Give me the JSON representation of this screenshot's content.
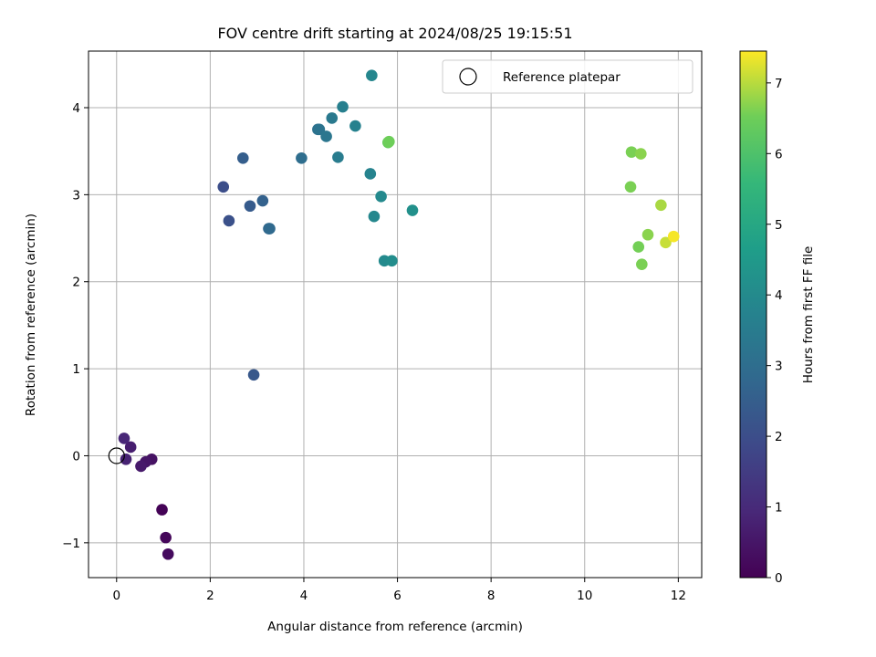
{
  "chart_data": {
    "type": "scatter",
    "title": "FOV centre drift starting at 2024/08/25 19:15:51",
    "xlabel": "Angular distance from reference (arcmin)",
    "ylabel": "Rotation from reference (arcmin)",
    "xlim": [
      -0.6,
      12.5
    ],
    "ylim": [
      -1.4,
      4.65
    ],
    "xticks": [
      0,
      2,
      4,
      6,
      8,
      10,
      12
    ],
    "yticks": [
      -1,
      0,
      1,
      2,
      3,
      4
    ],
    "ytick_labels": [
      "−1",
      "0",
      "1",
      "2",
      "3",
      "4"
    ],
    "grid": true,
    "legend": {
      "position": "top-right",
      "entries": [
        "Reference platepar"
      ]
    },
    "colorbar": {
      "label": "Hours from first FF file",
      "range": [
        0,
        7.45
      ],
      "ticks": [
        0,
        1,
        2,
        3,
        4,
        5,
        6,
        7
      ],
      "colormap": "viridis"
    },
    "reference_point": {
      "x": 0,
      "y": 0,
      "label": "Reference platepar"
    },
    "points": [
      {
        "x": 0.97,
        "y": -0.62,
        "c": 0.05
      },
      {
        "x": 1.05,
        "y": -0.94,
        "c": 0.15
      },
      {
        "x": 1.1,
        "y": -1.13,
        "c": 0.25
      },
      {
        "x": 0.75,
        "y": -0.04,
        "c": 0.4
      },
      {
        "x": 0.62,
        "y": -0.07,
        "c": 0.5
      },
      {
        "x": 0.52,
        "y": -0.12,
        "c": 0.6
      },
      {
        "x": 0.3,
        "y": 0.1,
        "c": 0.7
      },
      {
        "x": 0.2,
        "y": -0.04,
        "c": 0.8
      },
      {
        "x": 0.16,
        "y": 0.2,
        "c": 0.9
      },
      {
        "x": 2.28,
        "y": 3.09,
        "c": 2.0
      },
      {
        "x": 2.4,
        "y": 2.7,
        "c": 2.1
      },
      {
        "x": 2.93,
        "y": 0.93,
        "c": 2.3
      },
      {
        "x": 2.85,
        "y": 2.87,
        "c": 2.4
      },
      {
        "x": 2.7,
        "y": 3.42,
        "c": 2.5
      },
      {
        "x": 3.12,
        "y": 2.93,
        "c": 2.6
      },
      {
        "x": 3.25,
        "y": 2.61,
        "c": 2.75
      },
      {
        "x": 3.27,
        "y": 2.61,
        "c": 2.85
      },
      {
        "x": 3.95,
        "y": 3.42,
        "c": 3.0
      },
      {
        "x": 4.3,
        "y": 3.75,
        "c": 3.1
      },
      {
        "x": 4.33,
        "y": 3.75,
        "c": 3.2
      },
      {
        "x": 4.48,
        "y": 3.67,
        "c": 3.3
      },
      {
        "x": 4.6,
        "y": 3.88,
        "c": 3.4
      },
      {
        "x": 4.73,
        "y": 3.43,
        "c": 3.5
      },
      {
        "x": 4.83,
        "y": 4.01,
        "c": 3.6
      },
      {
        "x": 5.1,
        "y": 3.79,
        "c": 3.7
      },
      {
        "x": 5.42,
        "y": 3.24,
        "c": 3.75
      },
      {
        "x": 5.45,
        "y": 4.37,
        "c": 3.85
      },
      {
        "x": 5.5,
        "y": 2.75,
        "c": 3.9
      },
      {
        "x": 5.65,
        "y": 2.98,
        "c": 3.95
      },
      {
        "x": 5.72,
        "y": 2.24,
        "c": 4.0
      },
      {
        "x": 5.88,
        "y": 2.24,
        "c": 4.1
      },
      {
        "x": 6.32,
        "y": 2.82,
        "c": 4.2
      },
      {
        "x": 5.8,
        "y": 3.6,
        "c": 6.4
      },
      {
        "x": 5.82,
        "y": 3.61,
        "c": 6.5
      },
      {
        "x": 11.0,
        "y": 3.49,
        "c": 6.6
      },
      {
        "x": 11.2,
        "y": 3.47,
        "c": 6.7
      },
      {
        "x": 10.98,
        "y": 3.09,
        "c": 6.6
      },
      {
        "x": 11.15,
        "y": 2.4,
        "c": 6.55
      },
      {
        "x": 11.22,
        "y": 2.2,
        "c": 6.6
      },
      {
        "x": 11.35,
        "y": 2.54,
        "c": 6.7
      },
      {
        "x": 11.63,
        "y": 2.88,
        "c": 6.9
      },
      {
        "x": 11.73,
        "y": 2.45,
        "c": 7.1
      },
      {
        "x": 11.9,
        "y": 2.52,
        "c": 7.4
      }
    ]
  }
}
